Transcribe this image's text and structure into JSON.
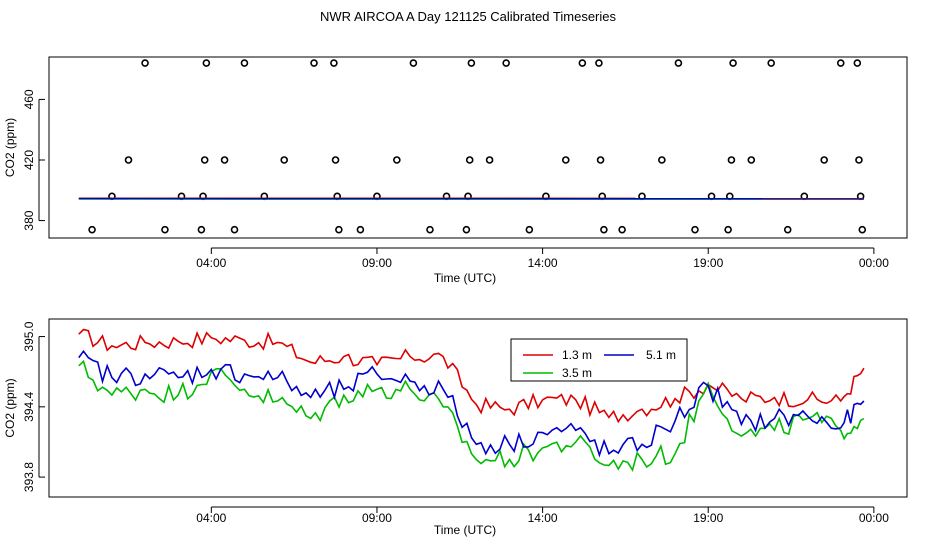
{
  "title": "NWR AIRCOA A  Day 121125  Calibrated Timeseries",
  "colors": {
    "s13": "#dd0000",
    "s35": "#00bb00",
    "s51": "#0000cc"
  },
  "chart_data": [
    {
      "type": "scatter",
      "xlabel": "Time (UTC)",
      "ylabel": "CO2 (ppm)",
      "x_unit": "hours UTC",
      "xlim": [
        -0.9,
        25
      ],
      "ylim": [
        368.5,
        488
      ],
      "x_ticks": [
        4,
        9,
        14,
        19,
        24
      ],
      "x_tick_labels": [
        "04:00",
        "09:00",
        "14:00",
        "19:00",
        "00:00"
      ],
      "y_ticks": [
        380,
        420,
        460
      ],
      "y_tick_labels": [
        "380",
        "420",
        "460"
      ],
      "legend": "none",
      "series": [
        {
          "name": "",
          "style": "open-circles",
          "points": [
            [
              0.4,
              374
            ],
            [
              1.0,
              396
            ],
            [
              1.5,
              420
            ],
            [
              2.0,
              484
            ],
            [
              2.6,
              374
            ],
            [
              3.1,
              396
            ],
            [
              3.7,
              374
            ],
            [
              3.75,
              396
            ],
            [
              3.8,
              420
            ],
            [
              3.85,
              484
            ],
            [
              4.4,
              420
            ],
            [
              4.7,
              374
            ],
            [
              5.0,
              484
            ],
            [
              5.6,
              396
            ],
            [
              6.2,
              420
            ],
            [
              7.1,
              484
            ],
            [
              7.7,
              484
            ],
            [
              7.75,
              420
            ],
            [
              7.8,
              396
            ],
            [
              7.85,
              374
            ],
            [
              8.5,
              374
            ],
            [
              9.0,
              396
            ],
            [
              9.6,
              420
            ],
            [
              10.1,
              484
            ],
            [
              10.6,
              374
            ],
            [
              11.1,
              396
            ],
            [
              11.7,
              374
            ],
            [
              11.75,
              396
            ],
            [
              11.8,
              420
            ],
            [
              11.85,
              484
            ],
            [
              12.4,
              420
            ],
            [
              12.9,
              484
            ],
            [
              13.6,
              374
            ],
            [
              14.1,
              396
            ],
            [
              14.7,
              420
            ],
            [
              15.2,
              484
            ],
            [
              15.7,
              484
            ],
            [
              15.75,
              420
            ],
            [
              15.8,
              396
            ],
            [
              15.85,
              374
            ],
            [
              16.4,
              374
            ],
            [
              17.0,
              396
            ],
            [
              17.6,
              420
            ],
            [
              18.1,
              484
            ],
            [
              18.6,
              374
            ],
            [
              19.1,
              396
            ],
            [
              19.6,
              374
            ],
            [
              19.65,
              396
            ],
            [
              19.7,
              420
            ],
            [
              19.75,
              484
            ],
            [
              20.3,
              420
            ],
            [
              20.9,
              484
            ],
            [
              21.4,
              374
            ],
            [
              21.9,
              396
            ],
            [
              22.5,
              420
            ],
            [
              23.0,
              484
            ],
            [
              23.5,
              484
            ],
            [
              23.55,
              420
            ],
            [
              23.6,
              396
            ],
            [
              23.65,
              374
            ]
          ]
        },
        {
          "name": "",
          "style": "line",
          "color": "#dd0000",
          "x": [
            0,
            23.7
          ],
          "y": [
            394.8,
            394.7
          ]
        },
        {
          "name": "",
          "style": "line",
          "color": "#00bb00",
          "x": [
            0,
            23.7
          ],
          "y": [
            394.2,
            394.1
          ]
        },
        {
          "name": "",
          "style": "line",
          "color": "#0000cc",
          "x": [
            0,
            23.7
          ],
          "y": [
            394.5,
            394.4
          ]
        }
      ]
    },
    {
      "type": "line",
      "xlabel": "Time (UTC)",
      "ylabel": "CO2 (ppm)",
      "x_unit": "hours UTC",
      "xlim": [
        -0.9,
        25
      ],
      "ylim": [
        393.63,
        395.15
      ],
      "x_ticks": [
        4,
        9,
        14,
        19,
        24
      ],
      "x_tick_labels": [
        "04:00",
        "09:00",
        "14:00",
        "19:00",
        "00:00"
      ],
      "y_ticks": [
        393.8,
        394.4,
        395.0
      ],
      "y_tick_labels": [
        "393.8",
        "394.4",
        "395.0"
      ],
      "legend": "top-center",
      "legend_entries": [
        "1.3 m",
        "3.5 m",
        "5.1 m"
      ],
      "series": [
        {
          "name": "1.3 m",
          "color": "#dd0000",
          "x": [
            0,
            1,
            2,
            3,
            4,
            5,
            6,
            7,
            8,
            9,
            10,
            11,
            12,
            13,
            14,
            15,
            16,
            17,
            18,
            19,
            20,
            21,
            22,
            23,
            23.7
          ],
          "y": [
            395.02,
            394.92,
            394.95,
            394.96,
            394.99,
            394.97,
            394.95,
            394.78,
            394.83,
            394.76,
            394.83,
            394.83,
            394.42,
            394.38,
            394.46,
            394.46,
            394.31,
            394.38,
            394.47,
            394.59,
            394.47,
            394.48,
            394.46,
            394.45,
            394.73
          ]
        },
        {
          "name": "3.5 m",
          "color": "#00bb00",
          "x": [
            0,
            1,
            2,
            3,
            4,
            5,
            6,
            7,
            8,
            9,
            10,
            11,
            12,
            13,
            14,
            15,
            16,
            17,
            18,
            19,
            20,
            21,
            22,
            23,
            23.7
          ],
          "y": [
            394.75,
            394.5,
            394.55,
            394.5,
            394.7,
            394.55,
            394.45,
            394.3,
            394.5,
            394.55,
            394.55,
            394.4,
            393.95,
            393.95,
            394.05,
            394.1,
            393.9,
            393.95,
            394.0,
            394.6,
            394.15,
            394.2,
            394.3,
            394.2,
            394.3
          ]
        },
        {
          "name": "5.1 m",
          "color": "#0000cc",
          "x": [
            0,
            1,
            2,
            3,
            4,
            5,
            6,
            7,
            8,
            9,
            10,
            11,
            12,
            13,
            14,
            15,
            16,
            17,
            18,
            19,
            20,
            21,
            22,
            23,
            23.7
          ],
          "y": [
            394.82,
            394.65,
            394.68,
            394.65,
            394.72,
            394.68,
            394.65,
            394.48,
            394.55,
            394.68,
            394.62,
            394.55,
            394.08,
            394.08,
            394.18,
            394.2,
            394.0,
            394.08,
            394.28,
            394.58,
            394.25,
            394.3,
            394.32,
            394.22,
            394.45
          ]
        }
      ]
    }
  ]
}
